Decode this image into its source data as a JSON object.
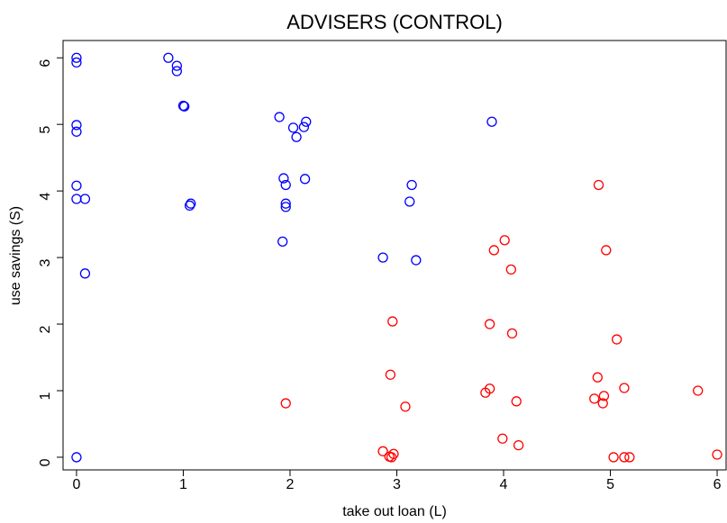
{
  "chart_data": {
    "type": "scatter",
    "title": "ADVISERS (CONTROL)",
    "xlabel": "take out loan (L)",
    "ylabel": "use savings (S)",
    "xlim": [
      -0.126,
      6.084
    ],
    "ylim": [
      -0.19,
      6.26
    ],
    "xticks": [
      0,
      1,
      2,
      3,
      4,
      5,
      6
    ],
    "yticks": [
      0,
      1,
      2,
      3,
      4,
      5,
      6
    ],
    "series": [
      {
        "color": "#0000ff",
        "x": [
          0,
          0,
          0,
          0,
          0,
          0,
          0.08,
          0.08,
          0,
          0.86,
          0.94,
          0.94,
          1.0,
          1.01,
          1.07,
          1.06,
          1.9,
          2.03,
          2.13,
          2.06,
          2.15,
          1.94,
          1.96,
          1.96,
          1.96,
          2.14,
          1.93,
          2.87,
          3.14,
          3.12,
          3.18,
          3.89
        ],
        "y": [
          6.0,
          5.93,
          4.99,
          4.89,
          4.08,
          3.88,
          3.88,
          2.76,
          0,
          6.0,
          5.88,
          5.8,
          5.28,
          5.27,
          3.81,
          3.78,
          5.11,
          4.95,
          4.96,
          4.81,
          5.04,
          4.19,
          4.09,
          3.81,
          3.76,
          4.18,
          3.24,
          3.0,
          4.09,
          3.84,
          2.96,
          5.04
        ]
      },
      {
        "color": "#ff0000",
        "x": [
          1.96,
          2.96,
          2.94,
          3.08,
          2.87,
          2.95,
          2.97,
          2.93,
          3.87,
          3.91,
          4.01,
          4.07,
          4.08,
          3.83,
          3.87,
          4.12,
          3.99,
          4.14,
          4.89,
          4.96,
          5.06,
          4.88,
          4.85,
          4.94,
          4.93,
          5.13,
          5.03,
          5.13,
          5.18,
          5.82,
          6.0
        ],
        "y": [
          0.81,
          2.04,
          1.24,
          0.76,
          0.09,
          0,
          0.05,
          0.01,
          2.0,
          3.11,
          3.26,
          2.82,
          1.86,
          0.97,
          1.03,
          0.84,
          0.28,
          0.18,
          4.09,
          3.11,
          1.77,
          1.2,
          0.88,
          0.92,
          0.81,
          1.04,
          0,
          0,
          0,
          1.0,
          0.04
        ]
      }
    ]
  }
}
